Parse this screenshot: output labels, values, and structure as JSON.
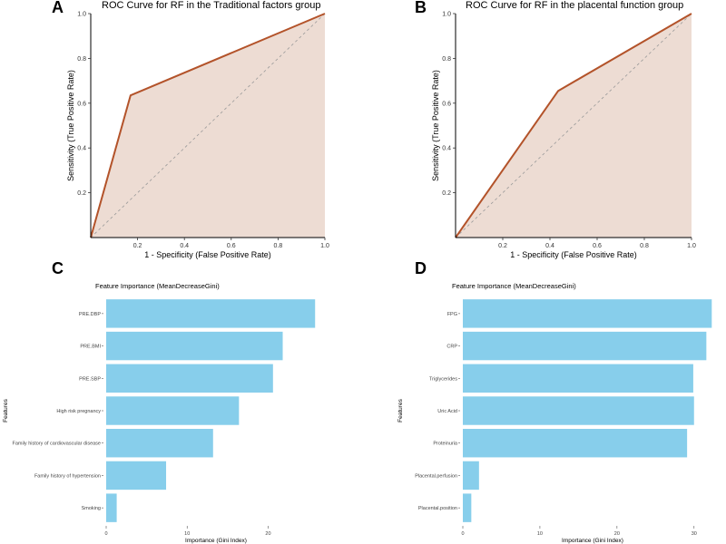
{
  "chart_data": [
    {
      "panel": "A",
      "type": "line",
      "title": "ROC Curve for RF in the Traditional factors group",
      "xlabel": "1 - Specificity (False Positive Rate)",
      "ylabel": "Sensitivity (True Positive Rate)",
      "xlim": [
        0,
        1
      ],
      "ylim": [
        0,
        1
      ],
      "x_ticks": [
        "0.2",
        "0.4",
        "0.6",
        "0.8",
        "1.0"
      ],
      "y_ticks": [
        "0.2",
        "0.4",
        "0.6",
        "0.8",
        "1.0"
      ],
      "x": [
        0,
        0.17,
        1
      ],
      "y": [
        0,
        0.635,
        1
      ],
      "line_color": "#b3532a",
      "fill_color": "#eddcd3"
    },
    {
      "panel": "B",
      "type": "line",
      "title": "ROC Curve for RF in the placental function group",
      "xlabel": "1 - Specificity (False Positive Rate)",
      "ylabel": "Sensitivity (True Positive Rate)",
      "xlim": [
        0,
        1
      ],
      "ylim": [
        0,
        1
      ],
      "x_ticks": [
        "0.2",
        "0.4",
        "0.6",
        "0.8",
        "1.0"
      ],
      "y_ticks": [
        "0.2",
        "0.4",
        "0.6",
        "0.8",
        "1.0"
      ],
      "x": [
        0,
        0.435,
        1
      ],
      "y": [
        0,
        0.655,
        1
      ],
      "line_color": "#b3532a",
      "fill_color": "#eddcd3"
    },
    {
      "panel": "C",
      "type": "bar",
      "orientation": "horizontal",
      "title": "Feature Importance (MeanDecreaseGini)",
      "xlabel": "Importance (Gini Index)",
      "ylabel": "Features",
      "xlim": [
        0,
        26
      ],
      "x_ticks": [
        0,
        10,
        20
      ],
      "categories": [
        "PRE.DBP",
        "PRE.BMI",
        "PRE.SBP",
        "High risk pregnancy",
        "Family history of cardiovascular disease",
        "Family history of hypertension",
        "Smoking"
      ],
      "values": [
        25.8,
        21.8,
        20.6,
        16.4,
        13.2,
        7.4,
        1.3
      ],
      "bar_color": "#87ceeb"
    },
    {
      "panel": "D",
      "type": "bar",
      "orientation": "horizontal",
      "title": "Feature Importance (MeanDecreaseGini)",
      "xlabel": "Importance (Gini Index)",
      "ylabel": "Features",
      "xlim": [
        0,
        32.5
      ],
      "x_ticks": [
        0,
        10,
        20,
        30
      ],
      "categories": [
        "FPG",
        "CRP",
        "Triglycerides",
        "Uric Acid",
        "Proteinuria",
        "Placental.perfusion",
        "Placental.position"
      ],
      "values": [
        32.3,
        31.6,
        29.9,
        30.0,
        29.1,
        2.1,
        1.1
      ],
      "bar_color": "#87ceeb"
    }
  ]
}
